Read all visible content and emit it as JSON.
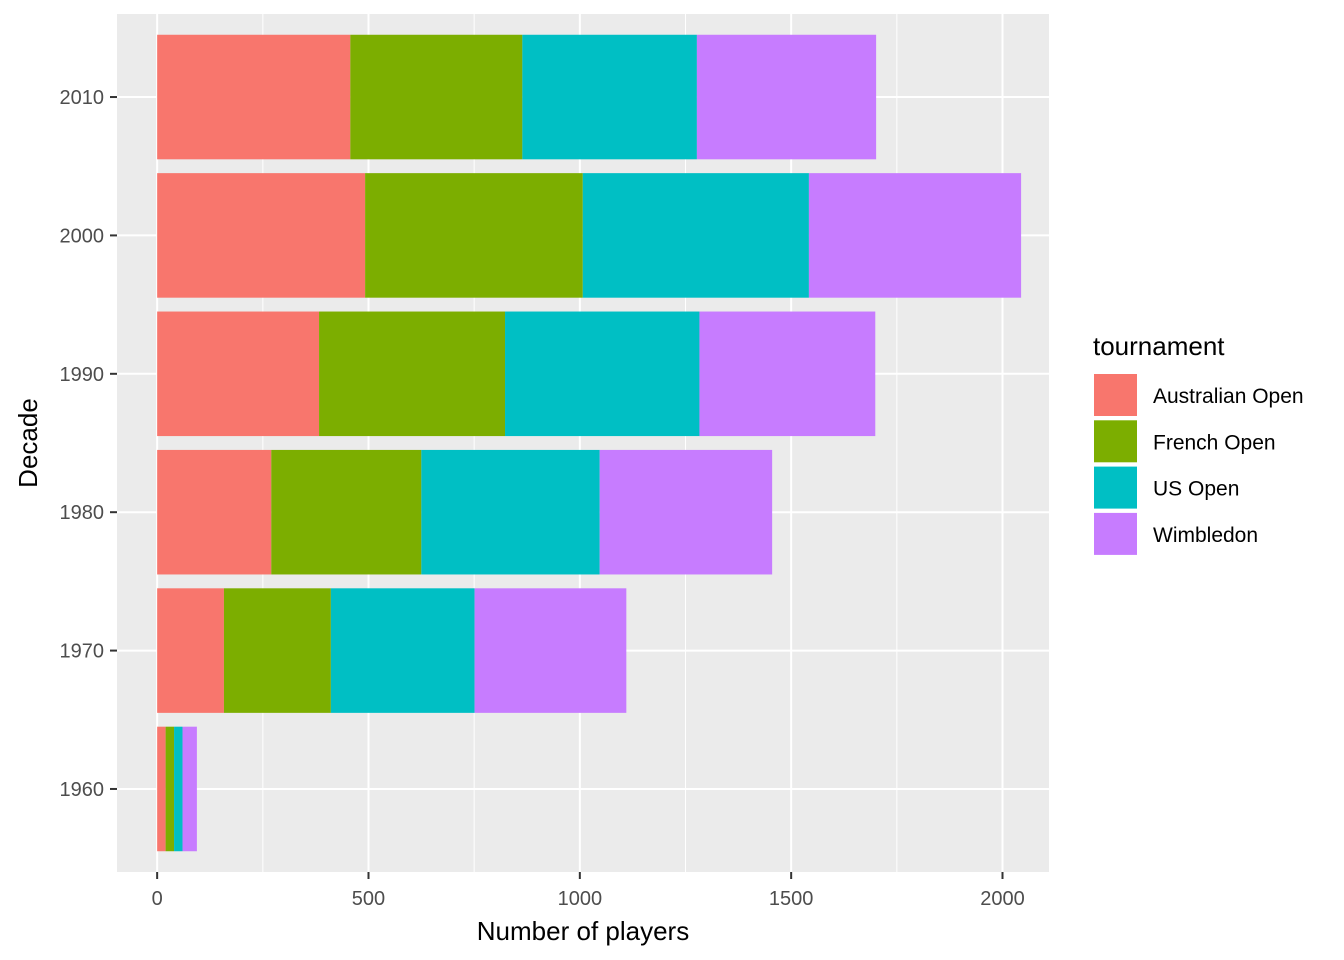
{
  "chart_data": {
    "type": "bar",
    "orientation": "horizontal",
    "stacked": true,
    "categories": [
      "1960",
      "1970",
      "1980",
      "1990",
      "2000",
      "2010"
    ],
    "series": [
      {
        "name": "Australian Open",
        "color": "#F8766D",
        "values": [
          20,
          158,
          270,
          383,
          492,
          457
        ]
      },
      {
        "name": "French Open",
        "color": "#7CAE00",
        "values": [
          20,
          253,
          355,
          440,
          515,
          407
        ]
      },
      {
        "name": "US Open",
        "color": "#00BFC4",
        "values": [
          20,
          340,
          422,
          460,
          535,
          413
        ]
      },
      {
        "name": "Wimbledon",
        "color": "#C77CFF",
        "values": [
          34,
          359,
          408,
          416,
          502,
          424
        ]
      }
    ],
    "xlabel": "Number of players",
    "ylabel": "Decade",
    "xlim": [
      -95,
      2110
    ],
    "xticks": [
      "0",
      "500",
      "1000",
      "1500",
      "2000"
    ],
    "xtick_values": [
      0,
      500,
      1000,
      1500,
      2000
    ],
    "legend": {
      "title": "tournament",
      "position": "right"
    },
    "grid": true,
    "panel_background": "#EBEBEB",
    "grid_color": "#FFFFFF"
  }
}
